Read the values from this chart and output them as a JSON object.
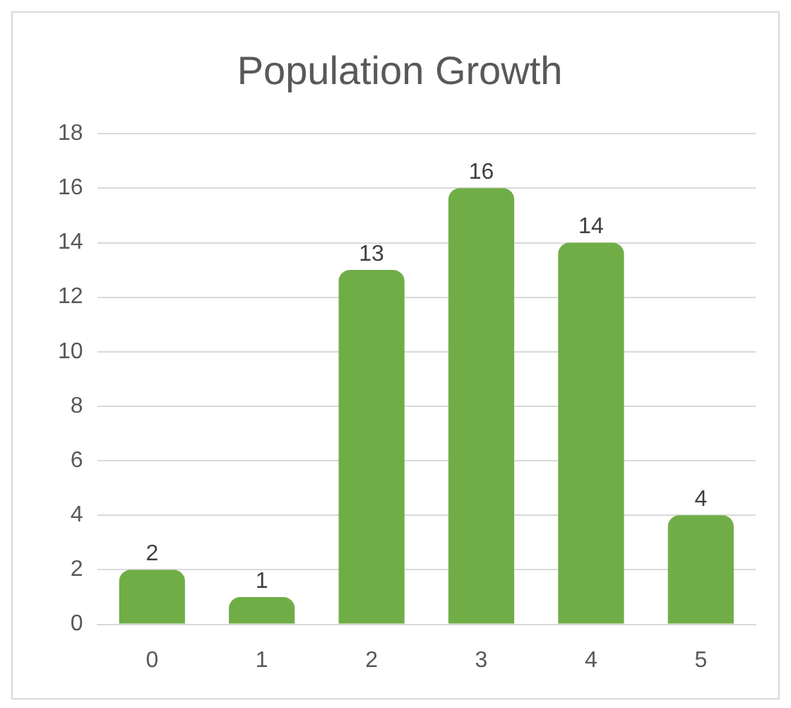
{
  "chart_data": {
    "type": "bar",
    "title": "Population Growth",
    "categories": [
      "0",
      "1",
      "2",
      "3",
      "4",
      "5"
    ],
    "values": [
      2,
      1,
      13,
      16,
      14,
      4
    ],
    "color": "#70ad47",
    "ylim": [
      0,
      18
    ],
    "yticks": [
      0,
      2,
      4,
      6,
      8,
      10,
      12,
      14,
      16,
      18
    ],
    "grid": "y",
    "data_labels": true,
    "legend": false
  }
}
